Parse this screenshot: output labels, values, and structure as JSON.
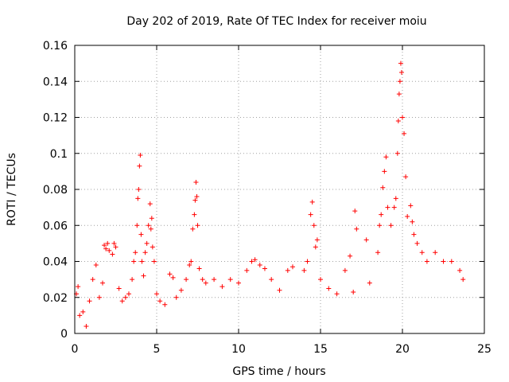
{
  "chart_data": {
    "type": "scatter",
    "title": "Day 202 of 2019, Rate Of TEC Index for receiver moiu",
    "xlabel": "GPS time / hours",
    "ylabel": "ROTI / TECUs",
    "xlim": [
      0,
      25
    ],
    "ylim": [
      0,
      0.16
    ],
    "xticks": [
      0,
      5,
      10,
      15,
      20,
      25
    ],
    "xtick_labels": [
      "0",
      "5",
      "10",
      "15",
      "20",
      "25"
    ],
    "yticks": [
      0,
      0.02,
      0.04,
      0.06,
      0.08,
      0.1,
      0.12,
      0.14,
      0.16
    ],
    "ytick_labels": [
      "0",
      "0.02",
      "0.04",
      "0.06",
      "0.08",
      "0.1",
      "0.12",
      "0.14",
      "0.16"
    ],
    "grid": true,
    "marker": "plus",
    "color": "#ff0000",
    "series": [
      {
        "name": "ROTI",
        "points": [
          [
            0.1,
            0.022
          ],
          [
            0.2,
            0.026
          ],
          [
            0.3,
            0.01
          ],
          [
            0.5,
            0.012
          ],
          [
            0.7,
            0.004
          ],
          [
            0.9,
            0.018
          ],
          [
            1.1,
            0.03
          ],
          [
            1.3,
            0.038
          ],
          [
            1.5,
            0.02
          ],
          [
            1.7,
            0.028
          ],
          [
            1.8,
            0.049
          ],
          [
            1.9,
            0.047
          ],
          [
            2.0,
            0.05
          ],
          [
            2.1,
            0.046
          ],
          [
            2.3,
            0.044
          ],
          [
            2.4,
            0.05
          ],
          [
            2.5,
            0.048
          ],
          [
            2.7,
            0.025
          ],
          [
            2.9,
            0.018
          ],
          [
            3.1,
            0.02
          ],
          [
            3.3,
            0.022
          ],
          [
            3.5,
            0.03
          ],
          [
            3.6,
            0.04
          ],
          [
            3.7,
            0.045
          ],
          [
            3.8,
            0.06
          ],
          [
            3.85,
            0.075
          ],
          [
            3.9,
            0.08
          ],
          [
            3.95,
            0.093
          ],
          [
            4.0,
            0.099
          ],
          [
            4.05,
            0.055
          ],
          [
            4.1,
            0.04
          ],
          [
            4.2,
            0.032
          ],
          [
            4.3,
            0.045
          ],
          [
            4.4,
            0.05
          ],
          [
            4.5,
            0.06
          ],
          [
            4.6,
            0.072
          ],
          [
            4.65,
            0.058
          ],
          [
            4.7,
            0.064
          ],
          [
            4.75,
            0.048
          ],
          [
            4.85,
            0.04
          ],
          [
            5.0,
            0.022
          ],
          [
            5.2,
            0.018
          ],
          [
            5.5,
            0.016
          ],
          [
            5.8,
            0.033
          ],
          [
            6.0,
            0.031
          ],
          [
            6.2,
            0.02
          ],
          [
            6.5,
            0.024
          ],
          [
            6.8,
            0.03
          ],
          [
            7.0,
            0.038
          ],
          [
            7.1,
            0.04
          ],
          [
            7.2,
            0.058
          ],
          [
            7.3,
            0.066
          ],
          [
            7.35,
            0.074
          ],
          [
            7.4,
            0.084
          ],
          [
            7.45,
            0.076
          ],
          [
            7.5,
            0.06
          ],
          [
            7.6,
            0.036
          ],
          [
            7.8,
            0.03
          ],
          [
            8.0,
            0.028
          ],
          [
            8.5,
            0.03
          ],
          [
            9.0,
            0.026
          ],
          [
            9.5,
            0.03
          ],
          [
            10.0,
            0.028
          ],
          [
            10.5,
            0.035
          ],
          [
            10.8,
            0.04
          ],
          [
            11.0,
            0.041
          ],
          [
            11.3,
            0.038
          ],
          [
            11.6,
            0.036
          ],
          [
            12.0,
            0.03
          ],
          [
            12.5,
            0.024
          ],
          [
            13.0,
            0.035
          ],
          [
            13.3,
            0.037
          ],
          [
            14.0,
            0.035
          ],
          [
            14.2,
            0.04
          ],
          [
            14.4,
            0.066
          ],
          [
            14.5,
            0.073
          ],
          [
            14.6,
            0.06
          ],
          [
            14.7,
            0.048
          ],
          [
            14.8,
            0.052
          ],
          [
            15.0,
            0.03
          ],
          [
            15.5,
            0.025
          ],
          [
            16.0,
            0.022
          ],
          [
            16.5,
            0.035
          ],
          [
            16.8,
            0.043
          ],
          [
            17.0,
            0.023
          ],
          [
            17.1,
            0.068
          ],
          [
            17.2,
            0.058
          ],
          [
            17.8,
            0.052
          ],
          [
            18.0,
            0.028
          ],
          [
            18.5,
            0.045
          ],
          [
            18.6,
            0.06
          ],
          [
            18.7,
            0.066
          ],
          [
            18.8,
            0.081
          ],
          [
            18.9,
            0.09
          ],
          [
            19.0,
            0.098
          ],
          [
            19.1,
            0.07
          ],
          [
            19.3,
            0.06
          ],
          [
            19.5,
            0.07
          ],
          [
            19.6,
            0.075
          ],
          [
            19.7,
            0.1
          ],
          [
            19.75,
            0.118
          ],
          [
            19.8,
            0.133
          ],
          [
            19.85,
            0.14
          ],
          [
            19.9,
            0.15
          ],
          [
            19.95,
            0.145
          ],
          [
            20.0,
            0.12
          ],
          [
            20.1,
            0.111
          ],
          [
            20.2,
            0.087
          ],
          [
            20.3,
            0.065
          ],
          [
            20.5,
            0.071
          ],
          [
            20.6,
            0.062
          ],
          [
            20.7,
            0.055
          ],
          [
            20.9,
            0.05
          ],
          [
            21.2,
            0.045
          ],
          [
            21.5,
            0.04
          ],
          [
            22.0,
            0.045
          ],
          [
            22.5,
            0.04
          ],
          [
            23.0,
            0.04
          ],
          [
            23.5,
            0.035
          ],
          [
            23.7,
            0.03
          ]
        ]
      }
    ]
  }
}
